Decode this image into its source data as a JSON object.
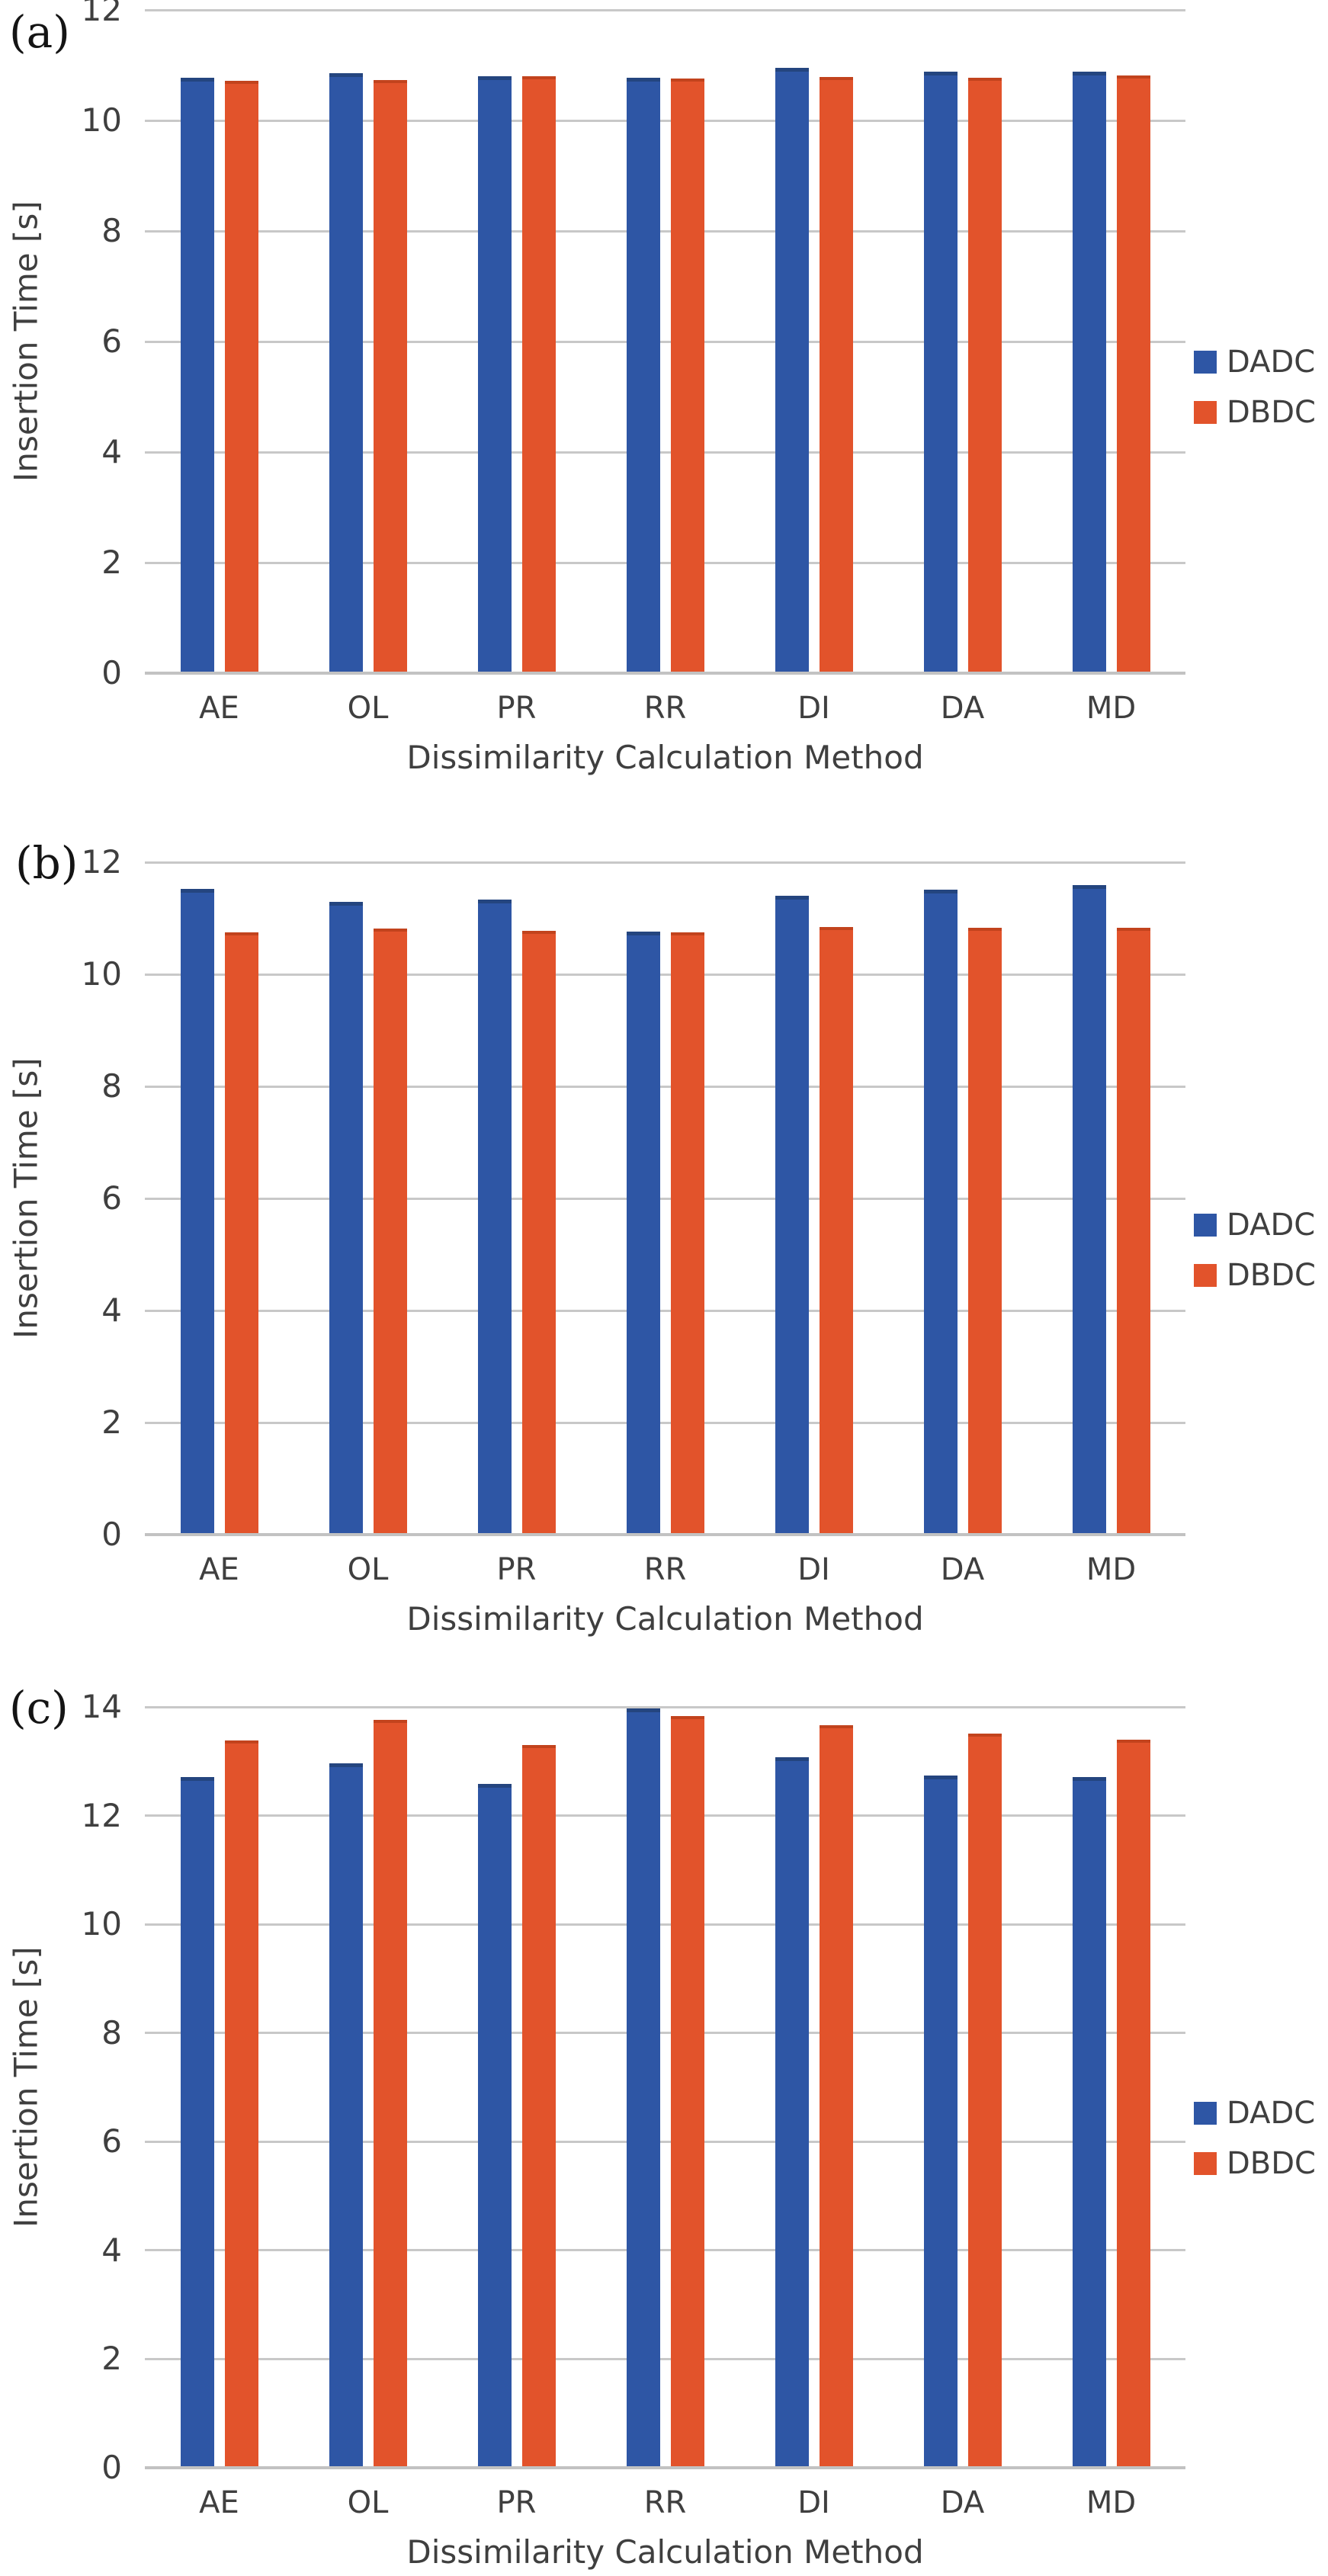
{
  "panels": [
    {
      "label": "(a)"
    },
    {
      "label": "(b)"
    },
    {
      "label": "(c)"
    }
  ],
  "colors": {
    "dadc_blue": "#2e56a5",
    "dbdc_orange": "#e2532b",
    "gridline": "#c8c8c8",
    "axis_line": "#c2c2c2",
    "text": "#3f3f3f"
  },
  "chart_data": [
    {
      "type": "bar",
      "panel": "(a)",
      "categories": [
        "AE",
        "OL",
        "PR",
        "RR",
        "DI",
        "DA",
        "MD"
      ],
      "series": [
        {
          "name": "DADC",
          "color": "#2e56a5",
          "values": [
            10.7,
            10.78,
            10.73,
            10.71,
            10.88,
            10.82,
            10.82
          ]
        },
        {
          "name": "DBDC",
          "color": "#e2532b",
          "values": [
            10.66,
            10.67,
            10.74,
            10.7,
            10.73,
            10.72,
            10.76
          ]
        }
      ],
      "xlabel": "Dissimilarity Calculation Method",
      "ylabel": "Insertion Time [s]",
      "ylim": [
        0,
        12
      ],
      "ytick_step": 2,
      "grid": true,
      "legend_position": "right"
    },
    {
      "type": "bar",
      "panel": "(b)",
      "categories": [
        "AE",
        "OL",
        "PR",
        "RR",
        "DI",
        "DA",
        "MD"
      ],
      "series": [
        {
          "name": "DADC",
          "color": "#2e56a5",
          "values": [
            11.45,
            11.23,
            11.26,
            10.7,
            11.34,
            11.44,
            11.52
          ]
        },
        {
          "name": "DBDC",
          "color": "#e2532b",
          "values": [
            10.7,
            10.76,
            10.72,
            10.7,
            10.79,
            10.77,
            10.77
          ]
        }
      ],
      "xlabel": "Dissimilarity Calculation Method",
      "ylabel": "Insertion Time [s]",
      "ylim": [
        0,
        12
      ],
      "ytick_step": 2,
      "grid": true,
      "legend_position": "right"
    },
    {
      "type": "bar",
      "panel": "(c)",
      "categories": [
        "AE",
        "OL",
        "PR",
        "RR",
        "DI",
        "DA",
        "MD"
      ],
      "series": [
        {
          "name": "DADC",
          "color": "#2e56a5",
          "values": [
            12.64,
            12.89,
            12.52,
            13.9,
            13.0,
            12.67,
            12.64
          ]
        },
        {
          "name": "DBDC",
          "color": "#e2532b",
          "values": [
            13.32,
            13.7,
            13.24,
            13.77,
            13.61,
            13.45,
            13.34
          ]
        }
      ],
      "xlabel": "Dissimilarity Calculation Method",
      "ylabel": "Insertion Time [s]",
      "ylim": [
        0,
        14
      ],
      "ytick_step": 2,
      "grid": true,
      "legend_position": "right"
    }
  ]
}
